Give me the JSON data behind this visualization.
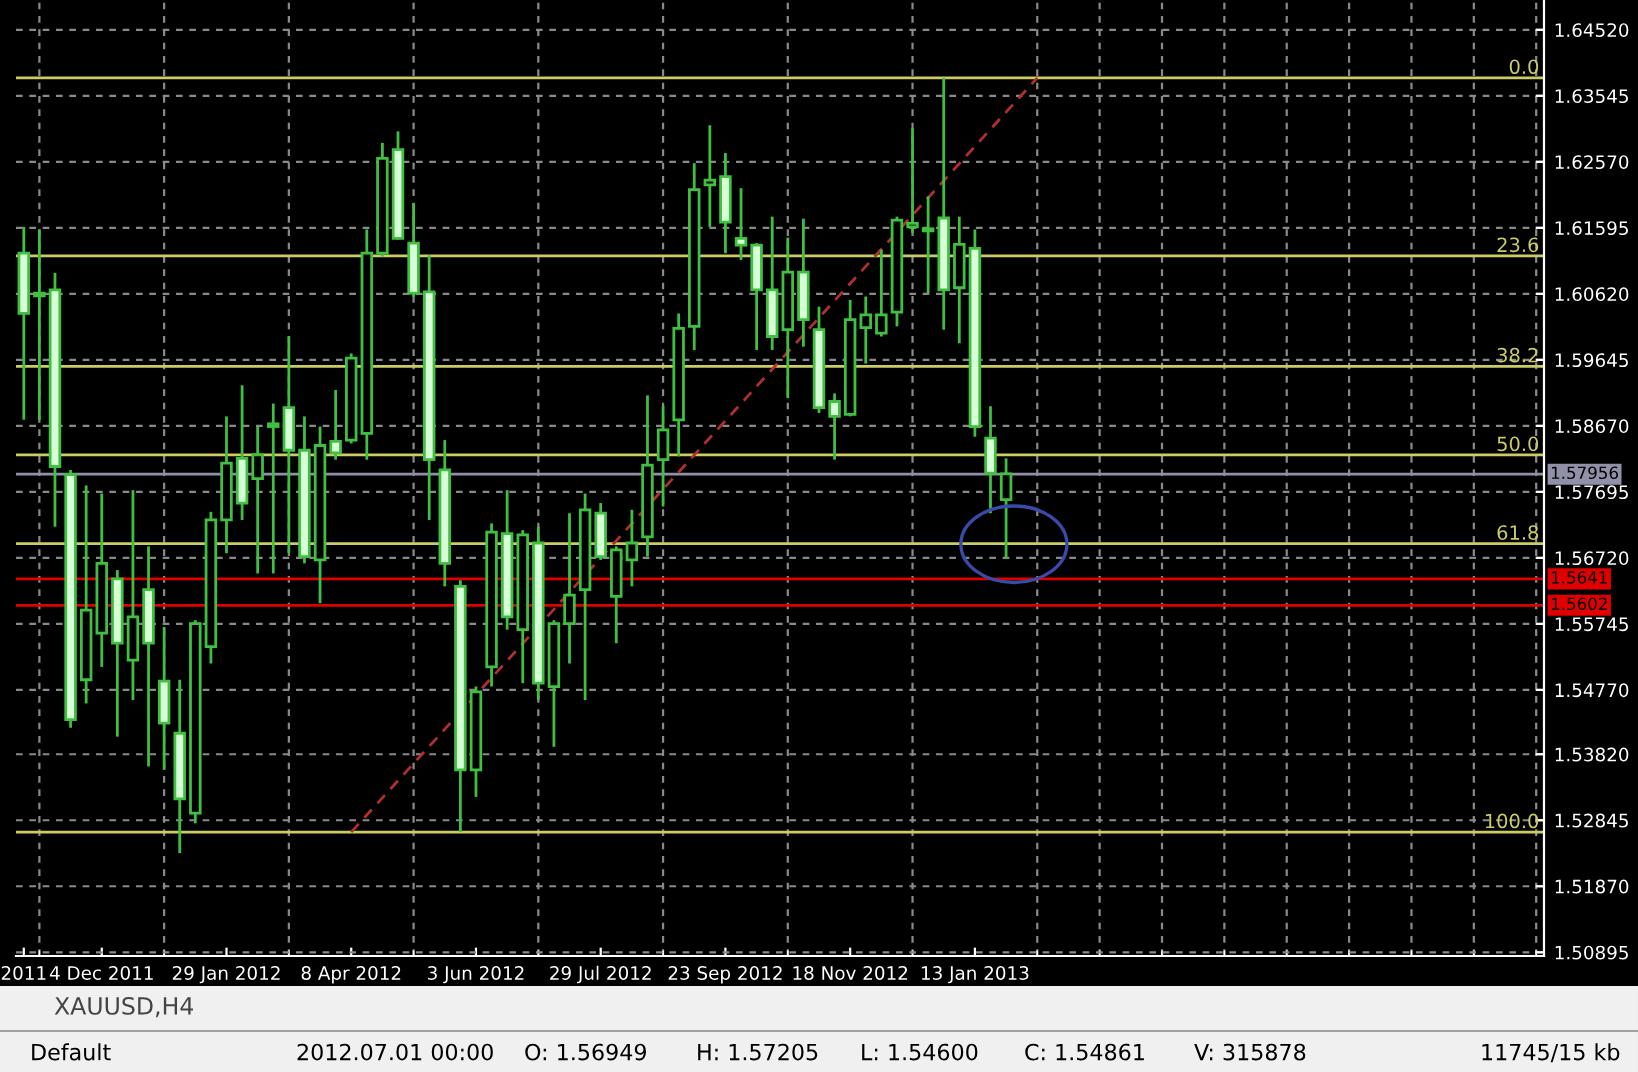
{
  "chart_data": {
    "type": "candlestick",
    "categories": [
      "2011",
      null,
      null,
      null,
      null,
      "4 Dec 2011",
      null,
      null,
      null,
      null,
      null,
      null,
      null,
      "29 Jan 2012",
      null,
      null,
      null,
      null,
      null,
      null,
      null,
      "8 Apr 2012",
      null,
      null,
      null,
      null,
      null,
      null,
      null,
      "3 Jun 2012",
      null,
      null,
      null,
      null,
      null,
      null,
      null,
      "29 Jul 2012",
      null,
      null,
      null,
      null,
      null,
      null,
      null,
      "23 Sep 2012",
      null,
      null,
      null,
      null,
      null,
      null,
      null,
      "18 Nov 2012",
      null,
      null,
      null,
      null,
      null,
      null,
      null,
      "13 Jan 2013",
      null,
      null,
      null,
      null,
      null,
      null,
      null,
      null,
      null,
      null,
      null,
      null,
      null,
      null,
      null,
      null,
      null,
      null,
      null,
      null,
      null,
      null,
      null,
      null,
      null,
      null,
      null,
      null,
      null,
      null,
      null,
      null,
      null,
      null,
      null,
      null
    ],
    "color": "#40c040",
    "ohlc": [
      [
        1.6122,
        1.6161,
        1.5876,
        1.6033
      ],
      [
        1.6063,
        1.6157,
        1.5876,
        1.6059
      ],
      [
        1.6068,
        1.6093,
        1.5718,
        1.5807
      ],
      [
        1.5795,
        1.5802,
        1.5421,
        1.5433
      ],
      [
        1.5492,
        1.5779,
        1.5457,
        1.5595
      ],
      [
        1.5561,
        1.5767,
        1.5511,
        1.5664
      ],
      [
        1.5641,
        1.5654,
        1.5408,
        1.5546
      ],
      [
        1.5521,
        1.5772,
        1.5462,
        1.5585
      ],
      [
        1.5625,
        1.5689,
        1.5364,
        1.5546
      ],
      [
        1.549,
        1.557,
        1.5359,
        1.5428
      ],
      [
        1.5413,
        1.5492,
        1.5236,
        1.5316
      ],
      [
        1.5295,
        1.558,
        1.528,
        1.5575
      ],
      [
        1.5541,
        1.574,
        1.5516,
        1.5728
      ],
      [
        1.5728,
        1.5881,
        1.5679,
        1.5812
      ],
      [
        1.5819,
        1.5927,
        1.5728,
        1.5753
      ],
      [
        1.5789,
        1.5866,
        1.5649,
        1.5824
      ],
      [
        1.5866,
        1.59,
        1.5649,
        1.587
      ],
      [
        1.5894,
        1.5999,
        1.5679,
        1.5831
      ],
      [
        1.5831,
        1.5881,
        1.5664,
        1.5674
      ],
      [
        1.5669,
        1.5866,
        1.5605,
        1.5838
      ],
      [
        1.5844,
        1.592,
        1.5817,
        1.5827
      ],
      [
        1.5846,
        1.5974,
        1.5841,
        1.5967
      ],
      [
        1.5856,
        1.6157,
        1.5817,
        1.6122
      ],
      [
        1.6122,
        1.6285,
        1.6117,
        1.6262
      ],
      [
        1.6275,
        1.6302,
        1.6142,
        1.6144
      ],
      [
        1.6137,
        1.6196,
        1.6058,
        1.6063
      ],
      [
        1.6065,
        1.6119,
        1.5728,
        1.5817
      ],
      [
        1.5802,
        1.5846,
        1.563,
        1.5664
      ],
      [
        1.563,
        1.5639,
        1.5267,
        1.5359
      ],
      [
        1.5359,
        1.5482,
        1.5319,
        1.5474
      ],
      [
        1.5511,
        1.5723,
        1.5482,
        1.571
      ],
      [
        1.5708,
        1.5772,
        1.5566,
        1.5585
      ],
      [
        1.5566,
        1.5713,
        1.5487,
        1.5706
      ],
      [
        1.5694,
        1.5718,
        1.5462,
        1.5487
      ],
      [
        1.5482,
        1.558,
        1.5393,
        1.5575
      ],
      [
        1.5575,
        1.5738,
        1.5516,
        1.5617
      ],
      [
        1.5625,
        1.5767,
        1.5462,
        1.5743
      ],
      [
        1.5738,
        1.5753,
        1.5669,
        1.5674
      ],
      [
        1.5615,
        1.5689,
        1.5546,
        1.5684
      ],
      [
        1.5669,
        1.5743,
        1.563,
        1.5694
      ],
      [
        1.5703,
        1.5912,
        1.5674,
        1.5809
      ],
      [
        1.5817,
        1.5896,
        1.5748,
        1.5861
      ],
      [
        1.5876,
        1.6033,
        1.5822,
        1.6011
      ],
      [
        1.6014,
        1.6255,
        1.5979,
        1.6216
      ],
      [
        1.6223,
        1.6311,
        1.6161,
        1.623
      ],
      [
        1.6235,
        1.627,
        1.6122,
        1.6168
      ],
      [
        1.6144,
        1.6218,
        1.6112,
        1.6134
      ],
      [
        1.6134,
        1.6137,
        1.5979,
        1.6068
      ],
      [
        1.6068,
        1.6176,
        1.5979,
        1.5999
      ],
      [
        1.6009,
        1.6145,
        1.5908,
        1.6094
      ],
      [
        1.6094,
        1.6173,
        1.5984,
        1.6024
      ],
      [
        1.6009,
        1.6043,
        1.5886,
        1.5894
      ],
      [
        1.5903,
        1.5915,
        1.5817,
        1.5881
      ],
      [
        1.5884,
        1.6053,
        1.5881,
        1.6024
      ],
      [
        1.6012,
        1.6058,
        1.5959,
        1.6031
      ],
      [
        1.6004,
        1.6127,
        1.5999,
        1.6031
      ],
      [
        1.6035,
        1.6176,
        1.6014,
        1.6171
      ],
      [
        1.6161,
        1.6307,
        1.6152,
        1.6166
      ],
      [
        1.6158,
        1.6206,
        1.6063,
        1.6155
      ],
      [
        1.6174,
        1.6381,
        1.6009,
        1.6068
      ],
      [
        1.6071,
        1.6176,
        1.5989,
        1.6135
      ],
      [
        1.6129,
        1.6157,
        1.5851,
        1.5866
      ],
      [
        1.5849,
        1.5896,
        1.5738,
        1.5797
      ],
      [
        1.5758,
        1.5819,
        1.5671,
        1.5796
      ],
      null,
      null,
      null,
      null,
      null,
      null,
      null,
      null,
      null,
      null,
      null,
      null,
      null,
      null,
      null,
      null,
      null,
      null,
      null,
      null,
      null,
      null,
      null,
      null,
      null,
      null,
      null,
      null,
      null,
      null,
      null,
      null,
      null,
      null
    ],
    "series": [
      {
        "type": "line",
        "color": "#b03030",
        "line_style": "dashed",
        "values": [
          null,
          null,
          null,
          null,
          null,
          null,
          null,
          null,
          null,
          null,
          null,
          null,
          null,
          null,
          null,
          null,
          null,
          null,
          null,
          null,
          null,
          1.5267,
          null,
          null,
          null,
          null,
          null,
          null,
          null,
          null,
          null,
          null,
          null,
          null,
          null,
          null,
          null,
          null,
          null,
          null,
          null,
          null,
          null,
          null,
          null,
          null,
          null,
          null,
          null,
          null,
          null,
          null,
          null,
          null,
          null,
          null,
          null,
          null,
          null,
          null,
          null,
          null,
          null,
          null,
          null,
          1.6381,
          null,
          null,
          null,
          null,
          null,
          null,
          null,
          null,
          null,
          null,
          null,
          null,
          null,
          null,
          null,
          null,
          null,
          null,
          null,
          null,
          null,
          null,
          null,
          null,
          null,
          null,
          null,
          null,
          null,
          null,
          null,
          null
        ]
      }
    ],
    "ylim": [
      1.5084,
      1.6496
    ],
    "yticks": [
      {
        "value": 1.6452,
        "label": "1.64520"
      },
      {
        "value": 1.63545,
        "label": "1.63545"
      },
      {
        "value": 1.6257,
        "label": "1.62570"
      },
      {
        "value": 1.61595,
        "label": "1.61595"
      },
      {
        "value": 1.6062,
        "label": "1.60620"
      },
      {
        "value": 1.59645,
        "label": "1.59645"
      },
      {
        "value": 1.5867,
        "label": "1.58670"
      },
      {
        "value": 1.57695,
        "label": "1.57695"
      },
      {
        "value": 1.5672,
        "label": "1.56720"
      },
      {
        "value": 1.55745,
        "label": "1.55745"
      },
      {
        "value": 1.5477,
        "label": "1.54770"
      },
      {
        "value": 1.5382,
        "label": "1.53820"
      },
      {
        "value": 1.52845,
        "label": "1.52845"
      },
      {
        "value": 1.5187,
        "label": "1.51870"
      },
      {
        "value": 1.50895,
        "label": "1.50895"
      }
    ],
    "grid": true,
    "ref_lines": [
      {
        "axis": "y",
        "value": 1.6381,
        "color": "#cccc66"
      },
      {
        "axis": "y",
        "value": 1.6118,
        "color": "#cccc66"
      },
      {
        "axis": "y",
        "value": 1.5955,
        "color": "#cccc66"
      },
      {
        "axis": "y",
        "value": 1.5824,
        "color": "#cccc66"
      },
      {
        "axis": "y",
        "value": 1.5693,
        "color": "#cccc66"
      },
      {
        "axis": "y",
        "value": 1.5267,
        "color": "#cccc66"
      },
      {
        "axis": "y",
        "value": 1.57956,
        "label": "1.57956",
        "color": "#9090a8"
      },
      {
        "axis": "y",
        "value": 1.5641,
        "label": "1.5641",
        "color": "#e00000"
      },
      {
        "axis": "y",
        "value": 1.5602,
        "label": "1.5602",
        "color": "#e00000"
      }
    ],
    "annotations": [
      {
        "text": "0.0",
        "y": 1.6381
      },
      {
        "text": "23.6",
        "y": 1.6118
      },
      {
        "text": "38.2",
        "y": 1.5955
      },
      {
        "text": "50.0",
        "y": 1.5824
      },
      {
        "text": "61.8",
        "y": 1.5693
      },
      {
        "text": "100.0",
        "y": 1.5267
      },
      "XAUUSD,H4",
      "Default",
      "2012.07.01 00:00",
      "O: 1.56949",
      "H: 1.57205",
      "L: 1.54600",
      "C: 1.54861",
      "V: 315878",
      "11745/15 kb"
    ]
  }
}
